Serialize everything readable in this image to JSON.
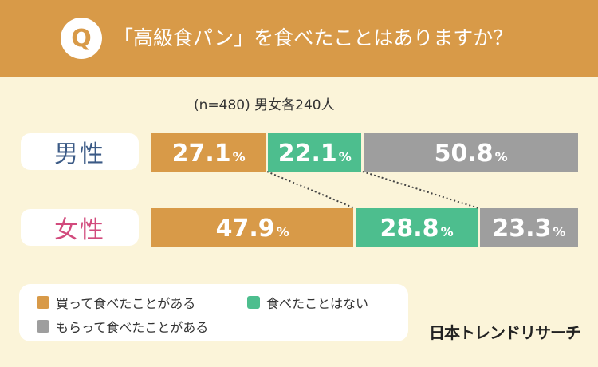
{
  "header": {
    "q_mark": "Q",
    "question": "「高級食パン」を食べたことはありますか？"
  },
  "sample_note": "(n=480) 男女各240人",
  "colors": {
    "header_bg": "#d89a48",
    "bought": "#d89a48",
    "not_eaten": "#4dbe8e",
    "received": "#9e9e9e",
    "male_label": "#3b5a86",
    "female_label": "#d24b7d"
  },
  "chart_data": {
    "type": "bar",
    "orientation": "horizontal",
    "stacked": true,
    "normalized": true,
    "categories": [
      "男性",
      "女性"
    ],
    "series": [
      {
        "name": "買って食べたことがある",
        "values": [
          27.1,
          47.9
        ]
      },
      {
        "name": "食べたことはない",
        "values": [
          22.1,
          28.8
        ]
      },
      {
        "name": "もらって食べたことがある",
        "values": [
          50.8,
          23.3
        ]
      }
    ],
    "unit": "%"
  },
  "labels": {
    "male": "男性",
    "female": "女性",
    "percent": "%",
    "male_values": [
      "27.1",
      "22.1",
      "50.8"
    ],
    "female_values": [
      "47.9",
      "28.8",
      "23.3"
    ]
  },
  "legend": {
    "items": [
      {
        "label": "買って食べたことがある",
        "color": "#d89a48"
      },
      {
        "label": "食べたことはない",
        "color": "#4dbe8e"
      },
      {
        "label": "もらって食べたことがある",
        "color": "#9e9e9e"
      }
    ]
  },
  "brand": "日本トレンドリサーチ"
}
